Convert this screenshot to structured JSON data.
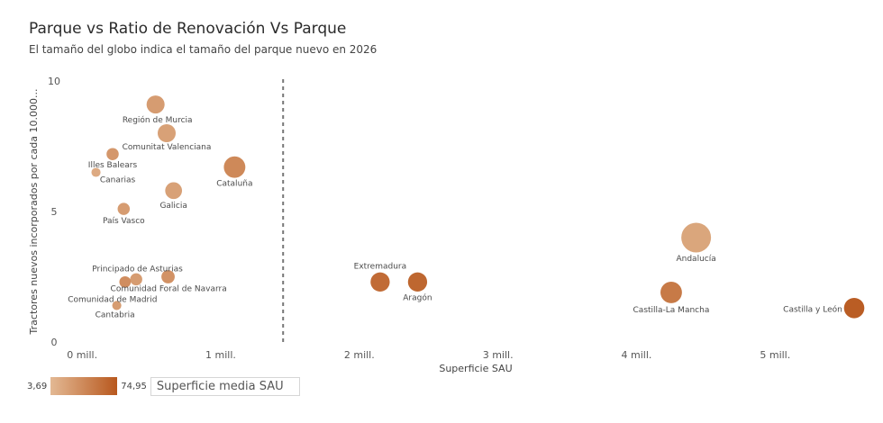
{
  "title": "Parque vs Ratio de Renovación Vs Parque",
  "subtitle": "El tamaño del globo indica el tamaño del parque nuevo en 2026",
  "legend": {
    "min_label": "3,69",
    "max_label": "74,95",
    "field_label": "Superficie media SAU",
    "color_low": "#e3b994",
    "color_high": "#b8581e"
  },
  "chart_data": {
    "type": "scatter",
    "title": "Parque vs Ratio de Renovación Vs Parque",
    "subtitle": "El tamaño del globo indica el tamaño del parque nuevo en 2026",
    "xlabel": "Superficie SAU",
    "ylabel": "Tractores nuevos incorporados por cada 10.000...",
    "xlim": [
      -300000,
      5700000
    ],
    "ylim": [
      0,
      10
    ],
    "x_ticks": [
      {
        "value": 0,
        "label": "0 mill."
      },
      {
        "value": 1000000,
        "label": "1 mill."
      },
      {
        "value": 2000000,
        "label": "2 mill."
      },
      {
        "value": 3000000,
        "label": "3 mill."
      },
      {
        "value": 4000000,
        "label": "4 mill."
      },
      {
        "value": 5000000,
        "label": "5 mill."
      }
    ],
    "y_ticks": [
      {
        "value": 0,
        "label": "0"
      },
      {
        "value": 5,
        "label": "5"
      },
      {
        "value": 10,
        "label": "10"
      }
    ],
    "reference_line": {
      "x": 1450000,
      "style": "dashed"
    },
    "size_meaning": "tamaño del parque nuevo en 2026",
    "color_meaning": "Superficie media SAU",
    "points": [
      {
        "label": "Región de Murcia",
        "x": 530000,
        "y": 9.1,
        "size": 0.5,
        "color": 0.3
      },
      {
        "label": "Comunitat Valenciana",
        "x": 610000,
        "y": 8.0,
        "size": 0.5,
        "color": 0.25
      },
      {
        "label": "Illes Balears",
        "x": 220000,
        "y": 7.2,
        "size": 0.25,
        "color": 0.35
      },
      {
        "label": "Canarias",
        "x": 100000,
        "y": 6.5,
        "size": 0.12,
        "color": 0.15
      },
      {
        "label": "Cataluña",
        "x": 1100000,
        "y": 6.7,
        "size": 0.65,
        "color": 0.5
      },
      {
        "label": "Galicia",
        "x": 660000,
        "y": 5.8,
        "size": 0.45,
        "color": 0.25
      },
      {
        "label": "País Vasco",
        "x": 300000,
        "y": 5.1,
        "size": 0.25,
        "color": 0.3
      },
      {
        "label": "Principado de Asturias",
        "x": 620000,
        "y": 2.5,
        "size": 0.3,
        "color": 0.4
      },
      {
        "label": "Comunidad Foral de Navarra",
        "x": 390000,
        "y": 2.4,
        "size": 0.25,
        "color": 0.3
      },
      {
        "label": "Comunidad de Madrid",
        "x": 310000,
        "y": 2.3,
        "size": 0.22,
        "color": 0.45
      },
      {
        "label": "Cantabria",
        "x": 250000,
        "y": 1.4,
        "size": 0.12,
        "color": 0.3
      },
      {
        "label": "Extremadura",
        "x": 2150000,
        "y": 2.3,
        "size": 0.55,
        "color": 0.8
      },
      {
        "label": "Aragón",
        "x": 2420000,
        "y": 2.3,
        "size": 0.55,
        "color": 0.85
      },
      {
        "label": "Andalucía",
        "x": 4430000,
        "y": 4.0,
        "size": 1.0,
        "color": 0.2
      },
      {
        "label": "Castilla-La Mancha",
        "x": 4250000,
        "y": 1.9,
        "size": 0.65,
        "color": 0.65
      },
      {
        "label": "Castilla y León",
        "x": 5570000,
        "y": 1.3,
        "size": 0.6,
        "color": 0.95
      }
    ],
    "grid": false,
    "legend_position": "bottom-left"
  }
}
